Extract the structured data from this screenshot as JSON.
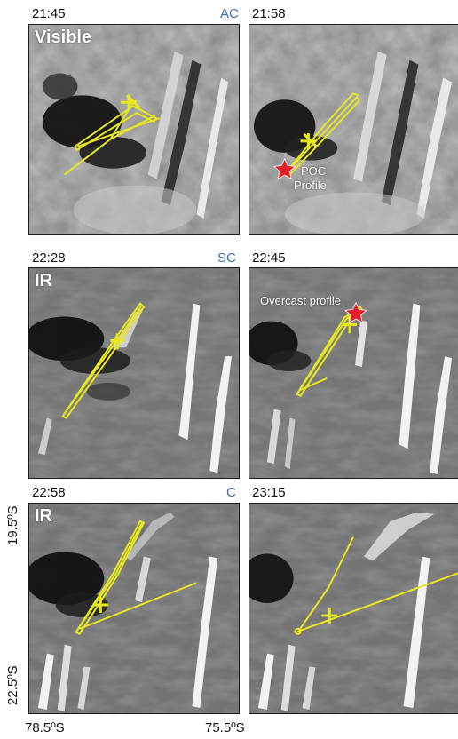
{
  "panels": [
    {
      "time": "21:45",
      "code": "AC",
      "band": "Visible"
    },
    {
      "time": "21:58",
      "code": "",
      "band": "",
      "annotation": [
        "POC",
        "Profile"
      ]
    },
    {
      "time": "22:28",
      "code": "SC",
      "band": "IR"
    },
    {
      "time": "22:45",
      "code": "",
      "band": "",
      "annotation": [
        "Overcast profile"
      ]
    },
    {
      "time": "22:58",
      "code": "C",
      "band": "IR"
    },
    {
      "time": "23:15",
      "code": "",
      "band": ""
    }
  ],
  "axes": {
    "lat_top": "19.5ºS",
    "lat_bottom": "22.5ºS",
    "lon_left": "78.5ºS",
    "lon_right": "75.5ºS"
  },
  "colors": {
    "track": "#e8e820",
    "star": "#e01f26",
    "code_text": "#3d6fae"
  }
}
